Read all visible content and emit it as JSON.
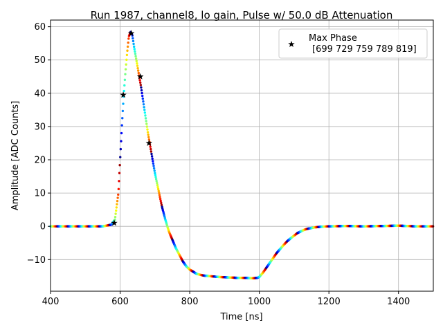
{
  "chart_data": {
    "type": "scatter",
    "title": "Run 1987, channel8, lo gain, Pulse w/ 50.0 dB Attenuation",
    "xlabel": "Time [ns]",
    "ylabel": "Amplitude [ADC Counts]",
    "xlim": [
      400,
      1500
    ],
    "ylim": [
      -19.5,
      62
    ],
    "x_ticks": [
      400,
      600,
      800,
      1000,
      1200,
      1400
    ],
    "x_tick_labels": [
      "400",
      "600",
      "800",
      "1000",
      "1200",
      "1400"
    ],
    "y_ticks": [
      -10,
      0,
      10,
      20,
      30,
      40,
      50,
      60
    ],
    "y_tick_labels": [
      "−10",
      "0",
      "10",
      "20",
      "30",
      "40",
      "50",
      "60"
    ],
    "grid": true,
    "legend": {
      "placement": "top-right",
      "entries": [
        {
          "label_line1": "Max Phase",
          "label_line2": "[699 729 759 789 819]",
          "marker": "star",
          "color": "#000000"
        }
      ]
    },
    "colormap": "jet",
    "pulse_samples": {
      "description_of_series": "waveform samples colored by phase",
      "x": [
        400,
        430,
        460,
        490,
        520,
        550,
        575,
        585,
        595,
        600,
        605,
        610,
        615,
        620,
        625,
        630,
        635,
        640,
        650,
        660,
        670,
        680,
        690,
        700,
        710,
        720,
        730,
        740,
        750,
        760,
        770,
        780,
        790,
        800,
        820,
        840,
        860,
        880,
        900,
        920,
        940,
        960,
        980,
        995,
        1000,
        1010,
        1020,
        1030,
        1040,
        1050,
        1060,
        1070,
        1080,
        1090,
        1100,
        1110,
        1120,
        1130,
        1140,
        1160,
        1180,
        1200,
        1250,
        1300,
        1350,
        1400,
        1450,
        1500
      ],
      "y": [
        0,
        0,
        0,
        0,
        0,
        0,
        0.5,
        2,
        10,
        20,
        30,
        39,
        46,
        52,
        57,
        58.5,
        57.5,
        54,
        48,
        42,
        35,
        28,
        22,
        16,
        11,
        6,
        2,
        -1.5,
        -4,
        -6.5,
        -8.5,
        -10.5,
        -12,
        -13,
        -14.3,
        -14.8,
        -15,
        -15.2,
        -15.3,
        -15.4,
        -15.5,
        -15.5,
        -15.6,
        -15.5,
        -15.2,
        -14,
        -12.5,
        -11,
        -9.5,
        -8,
        -6.8,
        -5.6,
        -4.5,
        -3.6,
        -2.8,
        -2,
        -1.5,
        -1,
        -0.7,
        -0.3,
        -0.1,
        0,
        0.1,
        0,
        0.1,
        0.2,
        0,
        0
      ]
    },
    "max_phase_stars": {
      "name": "Max Phase",
      "x": [
        583,
        609,
        632,
        658,
        683
      ],
      "y": [
        1,
        39.5,
        58,
        45,
        25
      ]
    }
  }
}
